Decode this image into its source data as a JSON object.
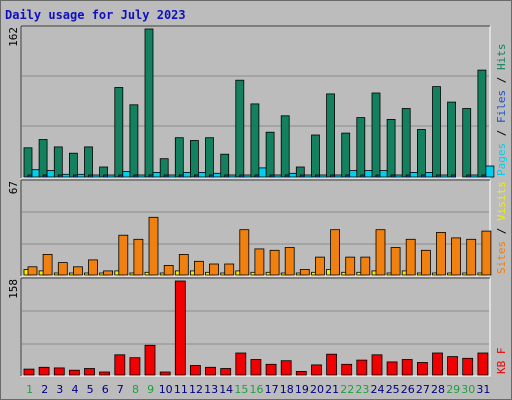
{
  "title": "Daily usage for July 2023",
  "chart_data": [
    {
      "type": "bar",
      "panel": "top",
      "ymax_label": "162",
      "legend": [
        {
          "label": "Pages",
          "color": "#00d0f0"
        },
        {
          "label": "Files",
          "color": "#2050c0"
        },
        {
          "label": "Hits",
          "color": "#138060"
        }
      ],
      "categories": [
        "1",
        "2",
        "3",
        "4",
        "5",
        "6",
        "7",
        "8",
        "9",
        "10",
        "11",
        "12",
        "13",
        "14",
        "15",
        "16",
        "17",
        "18",
        "19",
        "20",
        "21",
        "22",
        "23",
        "24",
        "25",
        "26",
        "27",
        "28",
        "29",
        "30",
        "31"
      ],
      "series": [
        {
          "name": "Hits",
          "color": "#138060",
          "values": [
            32,
            41,
            33,
            26,
            33,
            11,
            98,
            79,
            162,
            20,
            43,
            40,
            43,
            25,
            106,
            80,
            49,
            67,
            11,
            46,
            91,
            48,
            65,
            92,
            63,
            75,
            52,
            99,
            82,
            75,
            117
          ]
        },
        {
          "name": "Files",
          "color": "#2050c0",
          "values": [
            1,
            1,
            1,
            1,
            1,
            1,
            1,
            1,
            1,
            1,
            1,
            1,
            1,
            1,
            1,
            1,
            1,
            1,
            1,
            1,
            1,
            1,
            1,
            1,
            1,
            1,
            1,
            1,
            1,
            1,
            1
          ]
        },
        {
          "name": "Pages",
          "color": "#00d0f0",
          "values": [
            8,
            7,
            3,
            3,
            2,
            1,
            6,
            1,
            5,
            2,
            5,
            5,
            4,
            1,
            2,
            10,
            2,
            4,
            1,
            1,
            1,
            7,
            7,
            7,
            2,
            5,
            5,
            2,
            0,
            1,
            12
          ]
        }
      ],
      "ylim": [
        0,
        162
      ]
    },
    {
      "type": "bar",
      "panel": "middle",
      "ymax_label": "67",
      "legend": [
        {
          "label": "Sites",
          "color": "#f08010"
        },
        {
          "label": "Visits",
          "color": "#f0f000"
        }
      ],
      "categories": [
        "1",
        "2",
        "3",
        "4",
        "5",
        "6",
        "7",
        "8",
        "9",
        "10",
        "11",
        "12",
        "13",
        "14",
        "15",
        "16",
        "17",
        "18",
        "19",
        "20",
        "21",
        "22",
        "23",
        "24",
        "25",
        "26",
        "27",
        "28",
        "29",
        "30",
        "31"
      ],
      "series": [
        {
          "name": "Visits",
          "color": "#f0f000",
          "values": [
            4,
            3,
            1,
            1,
            1,
            1,
            3,
            1,
            2,
            1,
            3,
            3,
            2,
            1,
            3,
            2,
            2,
            1,
            1,
            2,
            4,
            2,
            2,
            3,
            1,
            3,
            1,
            1,
            1,
            1,
            1
          ]
        },
        {
          "name": "Sites",
          "color": "#f08010",
          "values": [
            6,
            15,
            9,
            6,
            11,
            3,
            29,
            26,
            42,
            7,
            15,
            10,
            8,
            8,
            33,
            19,
            18,
            20,
            4,
            13,
            33,
            13,
            13,
            33,
            20,
            26,
            18,
            31,
            27,
            26,
            32
          ]
        }
      ],
      "ylim": [
        0,
        67
      ]
    },
    {
      "type": "bar",
      "panel": "bottom",
      "ymax_label": "158",
      "legend": [
        {
          "label": "KB F",
          "color": "#f00000"
        }
      ],
      "categories": [
        "1",
        "2",
        "3",
        "4",
        "5",
        "6",
        "7",
        "8",
        "9",
        "10",
        "11",
        "12",
        "13",
        "14",
        "15",
        "16",
        "17",
        "18",
        "19",
        "20",
        "21",
        "22",
        "23",
        "24",
        "25",
        "26",
        "27",
        "28",
        "29",
        "30",
        "31"
      ],
      "series": [
        {
          "name": "KB F",
          "color": "#f00000",
          "values": [
            10,
            13,
            12,
            8,
            11,
            5,
            34,
            29,
            50,
            5,
            158,
            16,
            13,
            11,
            37,
            26,
            18,
            24,
            6,
            17,
            35,
            18,
            25,
            34,
            22,
            26,
            21,
            37,
            31,
            28,
            37
          ]
        }
      ],
      "ylim": [
        0,
        158
      ]
    }
  ],
  "xaxis": {
    "day_colors": [
      "#20a040",
      "#000080",
      "#000080",
      "#000080",
      "#000080",
      "#000080",
      "#000080",
      "#20a040",
      "#20a040",
      "#000080",
      "#000080",
      "#000080",
      "#000080",
      "#000080",
      "#20a040",
      "#20a040",
      "#000080",
      "#000080",
      "#000080",
      "#000080",
      "#000080",
      "#20a040",
      "#20a040",
      "#000080",
      "#000080",
      "#000080",
      "#000080",
      "#000080",
      "#20a040",
      "#20a040",
      "#000080"
    ]
  }
}
